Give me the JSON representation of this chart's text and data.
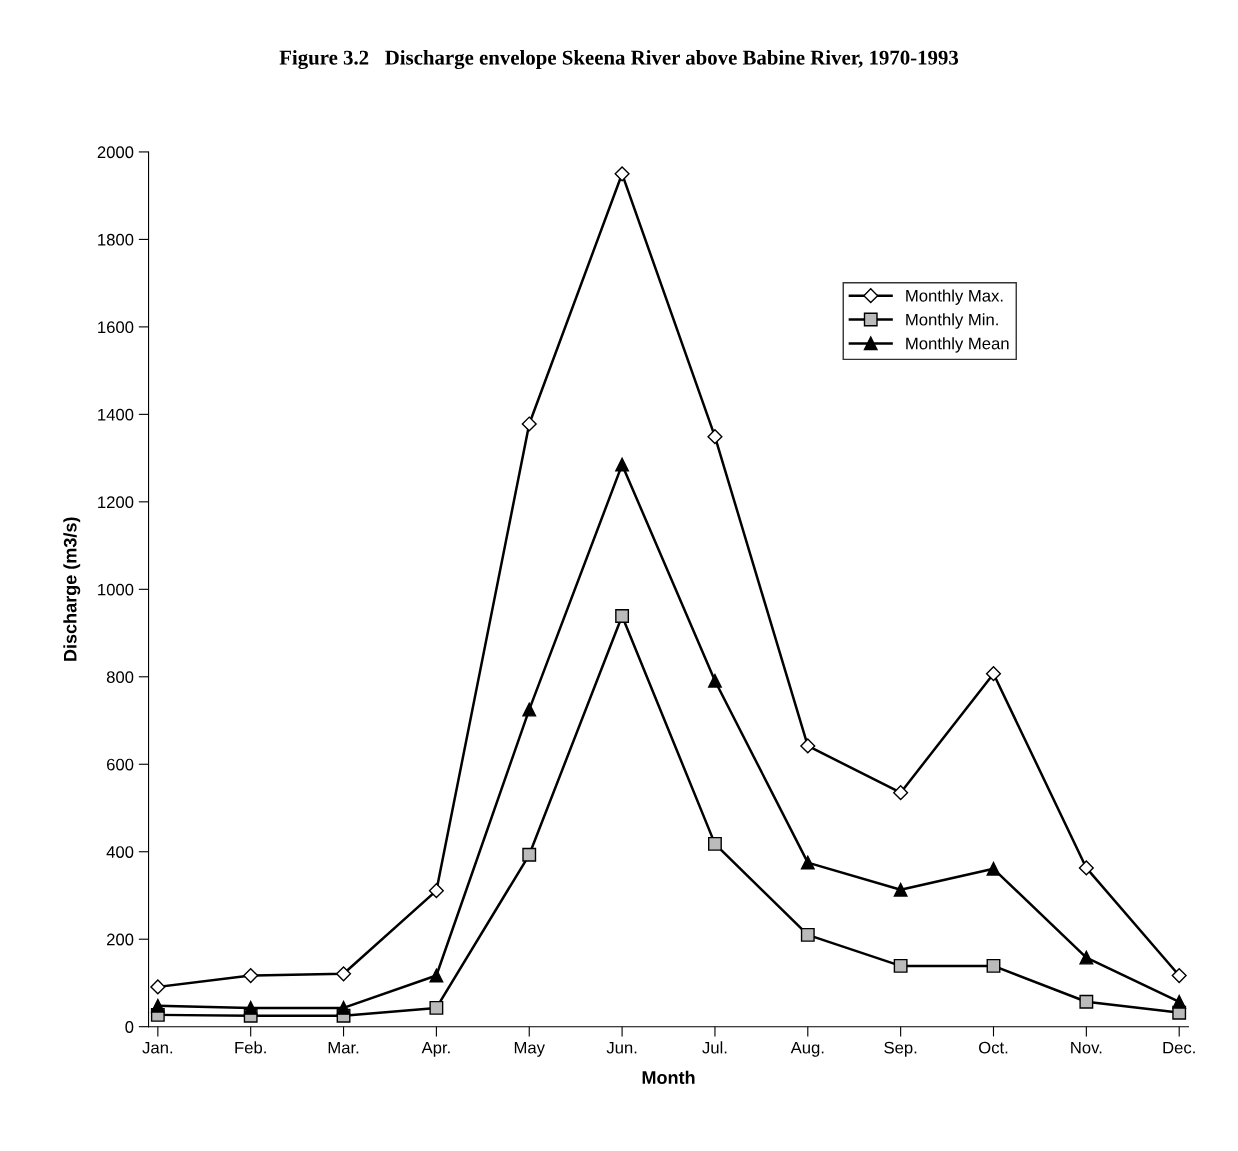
{
  "chart_data": {
    "type": "line",
    "title": "Figure 3.2   Discharge envelope Skeena River above Babine River, 1970-1993",
    "xlabel": "Month",
    "ylabel": "Discharge (m3/s)",
    "categories": [
      "Jan.",
      "Feb.",
      "Mar.",
      "Apr.",
      "May",
      "Jun.",
      "Jul.",
      "Aug.",
      "Sep.",
      "Oct.",
      "Nov.",
      "Dec."
    ],
    "series": [
      {
        "name": "Monthly Max.",
        "color": "#000000",
        "marker": "diamond",
        "values": [
          91,
          117,
          121,
          311,
          1378,
          1950,
          1349,
          642,
          535,
          807,
          363,
          117
        ]
      },
      {
        "name": "Monthly Min.",
        "color": "#000000",
        "marker": "square",
        "values": [
          27,
          25,
          25,
          43,
          393,
          939,
          418,
          210,
          139,
          139,
          57,
          32
        ]
      },
      {
        "name": "Monthly Mean",
        "color": "#000000",
        "marker": "triangle",
        "values": [
          48,
          43,
          43,
          117,
          725,
          1285,
          791,
          375,
          313,
          361,
          158,
          57
        ]
      }
    ],
    "ylim": [
      0,
      2000
    ],
    "yticks": [
      0,
      200,
      400,
      600,
      800,
      1000,
      1200,
      1400,
      1600,
      1800,
      2000
    ],
    "legend": "top right",
    "grid": false,
    "line_style": "solid"
  }
}
